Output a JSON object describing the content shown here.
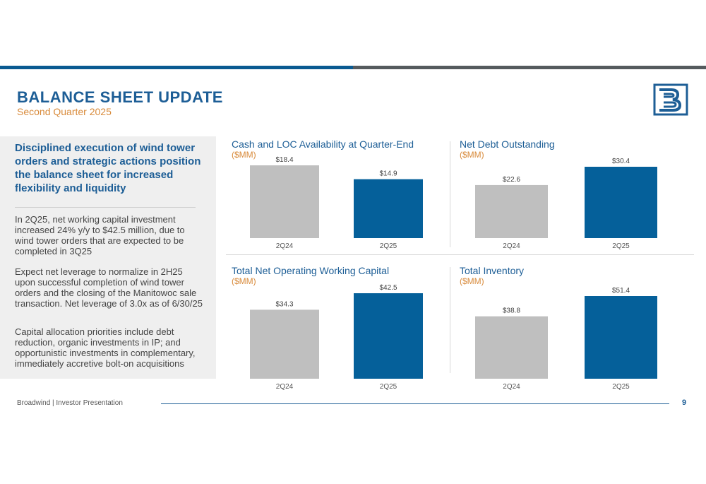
{
  "header": {
    "title": "BALANCE SHEET UPDATE",
    "subtitle": "Second Quarter 2025"
  },
  "colors": {
    "brand_blue": "#1d5e96",
    "bar_blue": "#05609a",
    "bar_gray": "#bfbfbf",
    "accent_orange": "#d88a3a"
  },
  "left_panel": {
    "headline": "Disciplined execution of wind tower orders and strategic actions position the balance sheet for increased flexibility and liquidity",
    "paragraphs": [
      "In 2Q25, net working capital investment increased 24% y/y to $42.5 million, due to wind tower orders that are expected to be completed in 3Q25",
      "Expect net leverage to normalize in 2H25 upon successful completion of wind tower orders and the closing of the Manitowoc sale transaction. Net leverage of 3.0x as of 6/30/25",
      "Capital allocation priorities include debt reduction, organic investments in IP; and opportunistic investments in complementary, immediately accretive bolt-on acquisitions"
    ]
  },
  "chart_data": [
    {
      "type": "bar",
      "title": "Cash and  LOC Availability at Quarter-End",
      "unit": "($MM)",
      "categories": [
        "2Q24",
        "2Q25"
      ],
      "values": [
        18.4,
        14.9
      ],
      "labels": [
        "$18.4",
        "$14.9"
      ],
      "bar_colors": [
        "#bfbfbf",
        "#05609a"
      ],
      "ylim": [
        0,
        18.4
      ],
      "grid": false
    },
    {
      "type": "bar",
      "title": "Net Debt Outstanding",
      "unit": "($MM)",
      "categories": [
        "2Q24",
        "2Q25"
      ],
      "values": [
        22.6,
        30.4
      ],
      "labels": [
        "$22.6",
        "$30.4"
      ],
      "bar_colors": [
        "#bfbfbf",
        "#05609a"
      ],
      "ylim": [
        0,
        30.4
      ],
      "grid": false
    },
    {
      "type": "bar",
      "title": "Total Net Operating Working Capital",
      "unit": "($MM)",
      "categories": [
        "2Q24",
        "2Q25"
      ],
      "values": [
        34.3,
        42.5
      ],
      "labels": [
        "$34.3",
        "$42.5"
      ],
      "bar_colors": [
        "#bfbfbf",
        "#05609a"
      ],
      "ylim": [
        0,
        42.5
      ],
      "grid": false
    },
    {
      "type": "bar",
      "title": "Total Inventory",
      "unit": "($MM)",
      "categories": [
        "2Q24",
        "2Q25"
      ],
      "values": [
        38.8,
        51.4
      ],
      "labels": [
        "$38.8",
        "$51.4"
      ],
      "bar_colors": [
        "#bfbfbf",
        "#05609a"
      ],
      "ylim": [
        0,
        51.4
      ],
      "grid": false
    }
  ],
  "footer": {
    "text": "Broadwind  | Investor Presentation",
    "page": "9"
  }
}
